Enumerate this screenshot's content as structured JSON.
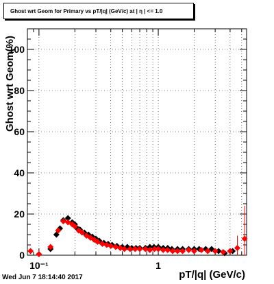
{
  "title": "Ghost wrt Geom for Primary vs pT/|q| (GeV/c) at | η | <= 1.0",
  "timestamp": "Wed Jun  7 18:14:40 2017",
  "chart_data": {
    "type": "scatter",
    "title": "Ghost wrt Geom for Primary vs pT/|q| (GeV/c) at | η | <= 1.0",
    "xlabel": "pT/|q| (GeV/c)",
    "ylabel": "Ghost wrt Geom(%)",
    "x_scale": "log",
    "xlim": [
      0.08,
      5.5
    ],
    "ylim": [
      0,
      110
    ],
    "x_tick_labels": [
      "10⁻¹",
      "1"
    ],
    "x_tick_values": [
      0.1,
      1
    ],
    "y_tick_labels": [
      "0",
      "20",
      "40",
      "60",
      "80",
      "100"
    ],
    "y_tick_values": [
      0,
      20,
      40,
      60,
      80,
      100
    ],
    "grid": true,
    "series": [
      {
        "color": "#000000",
        "marker": "diamond",
        "points": [
          [
            0.125,
            3
          ],
          [
            0.14,
            10
          ],
          [
            0.15,
            13
          ],
          [
            0.16,
            17
          ],
          [
            0.175,
            18
          ],
          [
            0.19,
            16
          ],
          [
            0.2,
            15
          ],
          [
            0.21,
            13
          ],
          [
            0.22,
            12.5
          ],
          [
            0.24,
            11
          ],
          [
            0.26,
            10
          ],
          [
            0.28,
            9
          ],
          [
            0.3,
            8
          ],
          [
            0.32,
            7
          ],
          [
            0.35,
            6
          ],
          [
            0.38,
            5.5
          ],
          [
            0.41,
            5
          ],
          [
            0.45,
            4.5
          ],
          [
            0.5,
            4
          ],
          [
            0.55,
            4
          ],
          [
            0.6,
            3.5
          ],
          [
            0.65,
            3.5
          ],
          [
            0.7,
            3.5
          ],
          [
            0.78,
            3.5
          ],
          [
            0.85,
            4
          ],
          [
            0.92,
            4
          ],
          [
            1.0,
            4
          ],
          [
            1.1,
            3.5
          ],
          [
            1.2,
            3.5
          ],
          [
            1.3,
            3
          ],
          [
            1.45,
            3
          ],
          [
            1.6,
            3
          ],
          [
            1.8,
            3
          ],
          [
            2.0,
            3
          ],
          [
            2.2,
            3
          ],
          [
            2.5,
            3
          ],
          [
            2.8,
            3
          ],
          [
            3.2,
            2
          ],
          [
            3.6,
            1
          ],
          [
            4.2,
            2
          ]
        ]
      },
      {
        "color": "#ff0000",
        "marker": "diamond",
        "points": [
          [
            0.085,
            2
          ],
          [
            0.1,
            0.5
          ],
          [
            0.125,
            4
          ],
          [
            0.145,
            12
          ],
          [
            0.16,
            16.5
          ],
          [
            0.175,
            16
          ],
          [
            0.19,
            15
          ],
          [
            0.2,
            14
          ],
          [
            0.215,
            12
          ],
          [
            0.23,
            11
          ],
          [
            0.25,
            9.5
          ],
          [
            0.27,
            8.5
          ],
          [
            0.29,
            7.5
          ],
          [
            0.31,
            6.5
          ],
          [
            0.34,
            5.5
          ],
          [
            0.37,
            5
          ],
          [
            0.4,
            4.5
          ],
          [
            0.44,
            4
          ],
          [
            0.48,
            3.5
          ],
          [
            0.52,
            3
          ],
          [
            0.58,
            3
          ],
          [
            0.64,
            3
          ],
          [
            0.7,
            3
          ],
          [
            0.78,
            3
          ],
          [
            0.85,
            2.5
          ],
          [
            0.93,
            3
          ],
          [
            1.0,
            3
          ],
          [
            1.1,
            2.5
          ],
          [
            1.2,
            2.5
          ],
          [
            1.32,
            2
          ],
          [
            1.45,
            2
          ],
          [
            1.6,
            2
          ],
          [
            1.8,
            2.5
          ],
          [
            2.0,
            2
          ],
          [
            2.3,
            2.5
          ],
          [
            2.6,
            2
          ],
          [
            3.0,
            2
          ],
          [
            3.5,
            1.5
          ],
          [
            4.0,
            2
          ],
          [
            4.6,
            3.5
          ],
          [
            5.3,
            8
          ]
        ],
        "error_high": [
          [
            4.6,
            6
          ],
          [
            5.3,
            16
          ]
        ]
      }
    ]
  }
}
